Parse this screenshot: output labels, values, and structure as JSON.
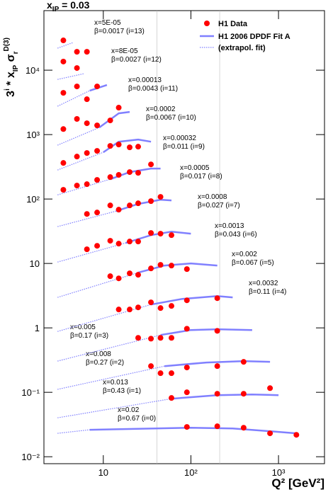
{
  "chart_data": {
    "type": "scatter",
    "title": [
      "x",
      "IP",
      " = 0.03"
    ],
    "y_label": [
      "3",
      "i",
      " * x",
      "IP",
      " σ",
      "r",
      "D(3)"
    ],
    "x_label": "Q² [GeV²]",
    "legend": [
      "H1 Data",
      "H1 2006 DPDF Fit A",
      "(extrapol. fit)"
    ],
    "data_color": "#ff0000",
    "fit_color": "#8080ff",
    "log_x": true,
    "log_y": true,
    "xlim": [
      2.1,
      3350
    ],
    "ylim": [
      0.0078,
      84000
    ],
    "xticks": [
      10,
      {
        "value": 100,
        "label": "10²"
      },
      {
        "value": 1000,
        "label": "10³"
      }
    ],
    "yticks": [
      {
        "value": 0.01,
        "label": "10⁻²"
      },
      {
        "value": 0.1,
        "label": "10⁻¹"
      },
      1,
      10,
      {
        "value": 100,
        "label": "10²"
      },
      {
        "value": 1000,
        "label": "10³"
      },
      {
        "value": 10000,
        "label": "10⁴"
      }
    ],
    "vlines": [
      41,
      213
    ],
    "bins": [
      {
        "x_label": "x=0.02",
        "beta_label": "β=0.67 (i=0)",
        "q2": [
          90,
          200,
          400,
          800,
          1600
        ],
        "values": [
          0.029,
          0.0297,
          0.0282,
          0.0231,
          0.0219
        ],
        "extrap_q2": [
          3,
          7
        ],
        "extrap": [
          0.0231,
          0.0262
        ],
        "fit_q2": [
          7,
          100,
          300,
          1000,
          1600
        ],
        "fit": [
          0.0262,
          0.0282,
          0.0275,
          0.0243,
          0.0231
        ]
      },
      {
        "x_label": "x=0.013",
        "beta_label": "β=0.43 (i=1)",
        "q2": [
          60,
          90,
          200,
          400,
          800
        ],
        "values": [
          0.0817,
          0.1,
          0.095,
          0.095,
          0.116
        ],
        "extrap_q2": [
          3,
          60
        ],
        "extrap": [
          0.0402,
          0.0796
        ],
        "fit_q2": [
          60,
          200,
          500,
          1000
        ],
        "fit": [
          0.0796,
          0.0904,
          0.0927,
          0.0904
        ]
      },
      {
        "x_label": "x=0.008",
        "beta_label": "β=0.27 (i=2)",
        "q2": [
          35,
          45,
          60,
          90,
          200,
          400
        ],
        "values": [
          0.255,
          0.198,
          0.198,
          0.243,
          0.255,
          0.297
        ],
        "extrap_q2": [
          3,
          50
        ],
        "extrap": [
          0.111,
          0.255
        ],
        "fit_q2": [
          50,
          150,
          400,
          800
        ],
        "fit": [
          0.255,
          0.29,
          0.305,
          0.297
        ]
      },
      {
        "x_label": "x=0.005",
        "beta_label": "β=0.17 (i=3)",
        "q2": [
          25,
          35,
          45,
          60,
          90,
          200
        ],
        "values": [
          0.7,
          0.68,
          0.7,
          0.7,
          0.97,
          0.9
        ],
        "extrap_q2": [
          3,
          45
        ],
        "extrap": [
          0.305,
          0.776
        ],
        "fit_q2": [
          45,
          100,
          200,
          500
        ],
        "fit": [
          0.776,
          0.927,
          0.951,
          0.927
        ]
      },
      {
        "x_label": "x=0.0032",
        "beta_label": "β=0.11 (i=4)",
        "q2": [
          15,
          20,
          25,
          35,
          45,
          60,
          90,
          200
        ],
        "values": [
          1.93,
          1.93,
          2.08,
          2.49,
          2.03,
          2.19,
          2.68,
          2.89
        ],
        "extrap_q2": [
          3,
          35
        ],
        "extrap": [
          0.881,
          2.3
        ],
        "fit_q2": [
          35,
          80,
          200,
          300
        ],
        "fit": [
          2.3,
          2.82,
          3.12,
          2.97
        ]
      },
      {
        "x_label": "x=0.002",
        "beta_label": "β=0.067 (i=5)",
        "q2": [
          12,
          15,
          20,
          25,
          35,
          45,
          60,
          90
        ],
        "values": [
          6.34,
          5.87,
          7.02,
          6.67,
          8.37,
          9.51,
          9.27,
          8.17
        ],
        "extrap_q2": [
          3,
          25
        ],
        "extrap": [
          2.97,
          7.2
        ],
        "fit_q2": [
          25,
          50,
          100,
          200
        ],
        "fit": [
          7.2,
          9.27,
          10,
          9.27
        ]
      },
      {
        "x_label": "x=0.0013",
        "beta_label": "β=0.043 (i=6)",
        "q2": [
          6.5,
          8.5,
          12,
          15,
          20,
          25,
          35,
          45,
          60
        ],
        "values": [
          16.6,
          18.8,
          22.5,
          20.3,
          21.9,
          21.9,
          29.7,
          29,
          27.5
        ],
        "extrap_q2": [
          3,
          18
        ],
        "extrap": [
          10.5,
          20.8
        ],
        "fit_q2": [
          18,
          35,
          60,
          100
        ],
        "fit": [
          20.8,
          27.5,
          31.2,
          29
        ]
      },
      {
        "x_label": "x=0.0008",
        "beta_label": "β=0.027 (i=7)",
        "q2": [
          6.5,
          8.5,
          12,
          15,
          20,
          25,
          35,
          45
        ],
        "values": [
          58.7,
          61.8,
          79.6,
          68.4,
          79.6,
          85.9,
          92.7,
          108
        ],
        "extrap_q2": [
          3,
          14
        ],
        "extrap": [
          37.3,
          65
        ],
        "fit_q2": [
          14,
          25,
          45,
          60
        ],
        "fit": [
          65,
          83.8,
          97.5,
          95.1
        ]
      },
      {
        "x_label": "x=0.0005",
        "beta_label": "β=0.017 (i=8)",
        "q2": [
          3.5,
          5,
          6.5,
          8.5,
          12,
          15,
          20,
          25,
          35
        ],
        "values": [
          139,
          162,
          170,
          198,
          219,
          237,
          262,
          255,
          345
        ],
        "extrap_q2": [
          3,
          12
        ],
        "extrap": [
          116,
          203
        ],
        "fit_q2": [
          12,
          20,
          35,
          45
        ],
        "fit": [
          203,
          262,
          297,
          297
        ]
      },
      {
        "x_label": "x=0.00032",
        "beta_label": "β=0.011 (i=9)",
        "q2": [
          3.5,
          5,
          6.5,
          8.5,
          12,
          15,
          20,
          25
        ],
        "values": [
          363,
          456,
          518,
          559,
          667,
          702,
          634,
          650
        ],
        "extrap_q2": [
          3,
          10
        ],
        "extrap": [
          282,
          531
        ],
        "fit_q2": [
          10,
          15,
          25,
          35
        ],
        "fit": [
          531,
          776,
          838,
          776
        ]
      },
      {
        "x_label": "x=0.0002",
        "beta_label": "β=0.0067 (i=10)",
        "q2": [
          3.5,
          5,
          6.5,
          8.5,
          12,
          15
        ],
        "values": [
          1220,
          1750,
          1500,
          1390,
          1660,
          2620
        ],
        "extrap_q2": [
          3,
          9
        ],
        "extrap": [
          684,
          1290
        ],
        "fit_q2": [
          9,
          15,
          20
        ],
        "fit": [
          1290,
          2140,
          2250
        ]
      },
      {
        "x_label": "x=0.00013",
        "beta_label": "β=0.0043 (i=11)",
        "q2": [
          3.5,
          5,
          6.5,
          8.5
        ],
        "values": [
          4450,
          5590,
          3540,
          5590
        ],
        "extrap_q2": [
          3,
          7
        ],
        "extrap": [
          2750,
          4800
        ],
        "fit_q2": [
          7,
          11
        ],
        "fit": [
          4800,
          5880
        ]
      },
      {
        "x_label": "x=8E-05",
        "beta_label": "β=0.0027 (i=12)",
        "q2": [
          3.5,
          5
        ],
        "values": [
          13600,
          10800
        ],
        "extrap_q2": [
          3,
          6
        ],
        "extrap": [
          7190,
          8810
        ]
      },
      {
        "x_label": "x=5E-05",
        "beta_label": "β=0.0017 (i=13)",
        "q2": [
          3.5,
          5,
          6.5
        ],
        "values": [
          29000,
          19300,
          19300
        ],
        "extrap_q2": [
          3,
          4.5
        ],
        "extrap": [
          21900,
          26800
        ]
      }
    ]
  }
}
